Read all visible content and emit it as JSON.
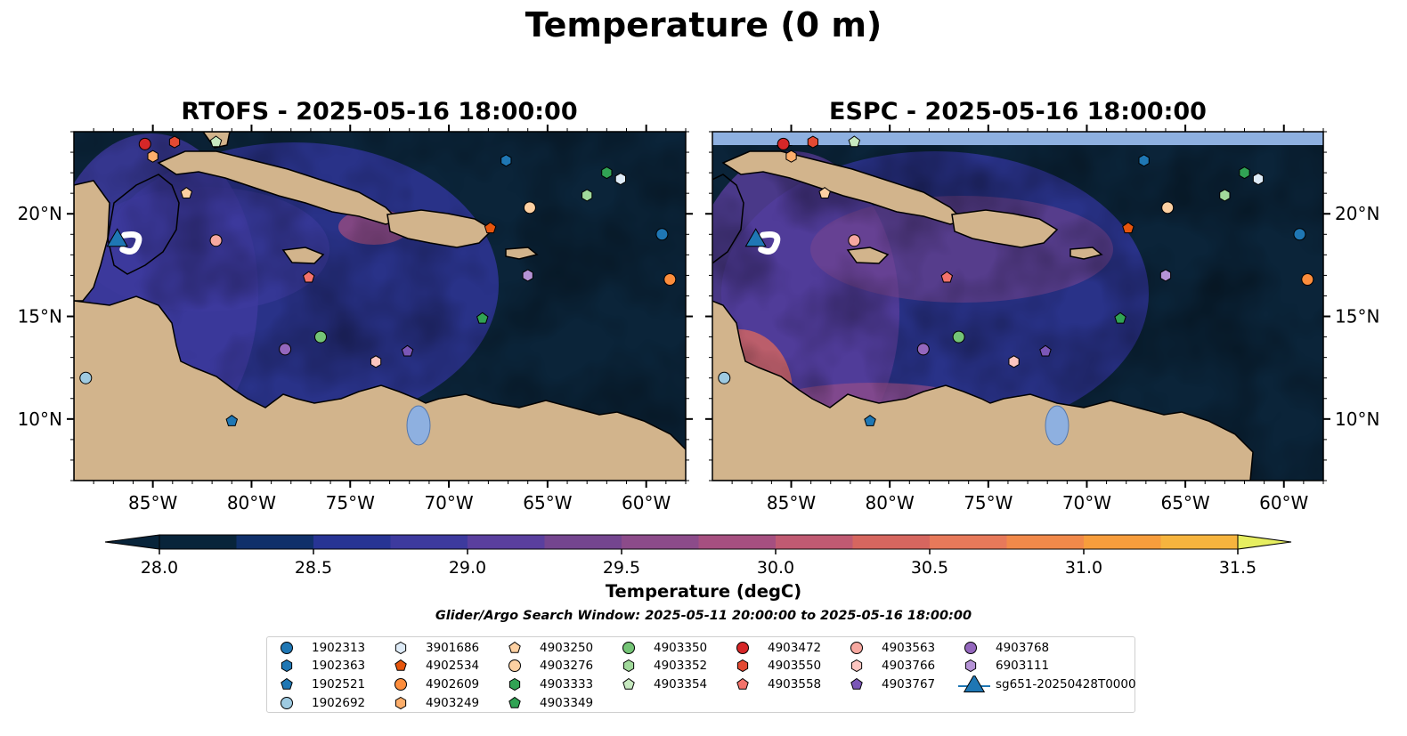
{
  "title": "Temperature (0 m)",
  "subtitle": "Glider/Argo Search Window: 2025-05-11 20:00:00 to 2025-05-16 18:00:00",
  "panels": [
    {
      "title": "RTOFS - 2025-05-16 18:00:00",
      "model": "RTOFS"
    },
    {
      "title": "ESPC - 2025-05-16 18:00:00",
      "model": "ESPC"
    }
  ],
  "map": {
    "lon_range": [
      -89,
      -58
    ],
    "lat_range": [
      7,
      24
    ],
    "lon_ticks": [
      "85°W",
      "80°W",
      "75°W",
      "70°W",
      "65°W",
      "60°W"
    ],
    "lat_ticks": [
      "20°N",
      "15°N",
      "10°N"
    ],
    "land_color": "#d2b48c",
    "ocean_base_color": "#0b2439"
  },
  "colorbar": {
    "label": "Temperature (degC)",
    "min": 28.0,
    "max": 31.5,
    "step": 0.25,
    "tick_labels": [
      "28.0",
      "28.5",
      "29.0",
      "29.5",
      "30.0",
      "30.5",
      "31.0",
      "31.5"
    ],
    "colors": [
      "#08243a",
      "#10306a",
      "#273494",
      "#3d3a9e",
      "#5a3f9e",
      "#74458f",
      "#8c4b8a",
      "#a64f80",
      "#c05a72",
      "#d6665f",
      "#e7795a",
      "#f1894a",
      "#f79d3c",
      "#f6b43e",
      "#f1cf47",
      "#e6ee60"
    ]
  },
  "markers": [
    {
      "id": "1902313",
      "shape": "circle",
      "color": "#1f77b4",
      "lon": -59.2,
      "lat": 19.0
    },
    {
      "id": "1902363",
      "shape": "hexagon",
      "color": "#1f77b4",
      "lon": -67.1,
      "lat": 22.6
    },
    {
      "id": "1902521",
      "shape": "pentagon",
      "color": "#1f77b4",
      "lon": -81.0,
      "lat": 9.9
    },
    {
      "id": "1902692",
      "shape": "circle",
      "color": "#9ecae1",
      "lon": -88.4,
      "lat": 12.0
    },
    {
      "id": "3901686",
      "shape": "hexagon",
      "color": "#deebf7",
      "lon": -61.3,
      "lat": 21.7
    },
    {
      "id": "4902534",
      "shape": "pentagon",
      "color": "#e6550d",
      "lon": -67.9,
      "lat": 19.3
    },
    {
      "id": "4902609",
      "shape": "circle",
      "color": "#fd8d3c",
      "lon": -58.8,
      "lat": 16.8
    },
    {
      "id": "4903249",
      "shape": "hexagon",
      "color": "#fdae6b",
      "lon": -85.0,
      "lat": 22.8
    },
    {
      "id": "4903250",
      "shape": "pentagon",
      "color": "#fdd0a2",
      "lon": -83.3,
      "lat": 21.0
    },
    {
      "id": "4903276",
      "shape": "circle",
      "color": "#fdd0a2",
      "lon": -65.9,
      "lat": 20.3
    },
    {
      "id": "4903333",
      "shape": "hexagon",
      "color": "#31a354",
      "lon": -62.0,
      "lat": 22.0
    },
    {
      "id": "4903349",
      "shape": "pentagon",
      "color": "#31a354",
      "lon": -68.3,
      "lat": 14.9
    },
    {
      "id": "4903350",
      "shape": "circle",
      "color": "#74c476",
      "lon": -76.5,
      "lat": 14.0
    },
    {
      "id": "4903352",
      "shape": "hexagon",
      "color": "#a1d99b",
      "lon": -63.0,
      "lat": 20.9
    },
    {
      "id": "4903354",
      "shape": "pentagon",
      "color": "#c7e9c0",
      "lon": -81.8,
      "lat": 23.5
    },
    {
      "id": "4903472",
      "shape": "circle",
      "color": "#d62728",
      "lon": -85.4,
      "lat": 23.4
    },
    {
      "id": "4903550",
      "shape": "hexagon",
      "color": "#e34a33",
      "lon": -83.9,
      "lat": 23.5
    },
    {
      "id": "4903558",
      "shape": "pentagon",
      "color": "#f4736b",
      "lon": -77.1,
      "lat": 16.9
    },
    {
      "id": "4903563",
      "shape": "circle",
      "color": "#f7a8a0",
      "lon": -81.8,
      "lat": 18.7
    },
    {
      "id": "4903766",
      "shape": "hexagon",
      "color": "#fcc5c0",
      "lon": -73.7,
      "lat": 12.8
    },
    {
      "id": "4903767",
      "shape": "pentagon",
      "color": "#7b57b7",
      "lon": -72.1,
      "lat": 13.3
    },
    {
      "id": "4903768",
      "shape": "circle",
      "color": "#9467bd",
      "lon": -78.3,
      "lat": 13.4
    },
    {
      "id": "6903111",
      "shape": "hexagon",
      "color": "#b593d6",
      "lon": -66.0,
      "lat": 17.0
    },
    {
      "id": "sg651-20250428T0000",
      "shape": "triangle",
      "color": "#1f77b4",
      "lon": -86.8,
      "lat": 18.7
    }
  ]
}
